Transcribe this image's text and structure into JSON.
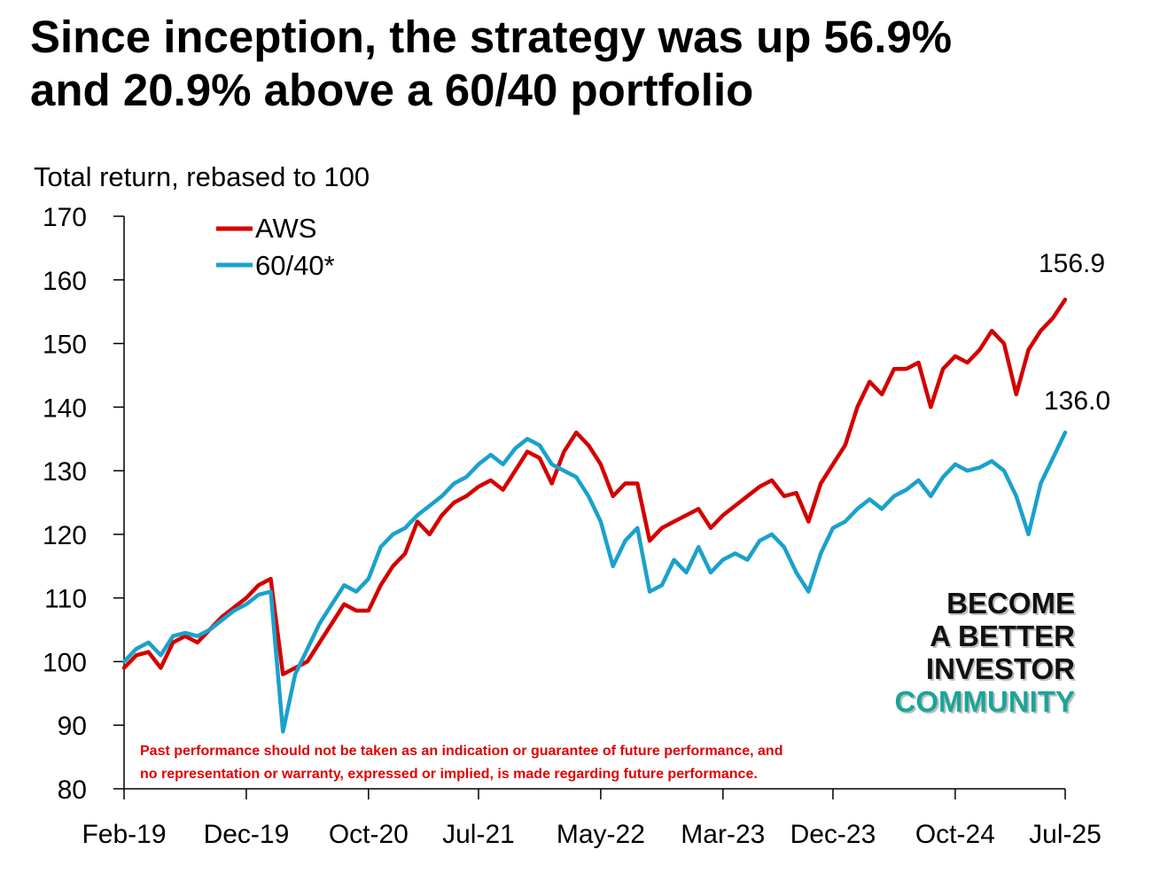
{
  "title_line1": "Since inception, the strategy was up 56.9%",
  "title_line2": "and 20.9% above a 60/40 portfolio",
  "brand": {
    "line1": "BECOME",
    "line2": "A BETTER",
    "line3": "INVESTOR",
    "line4": "COMMUNITY",
    "accent_color": "#1aa598"
  },
  "disclaimer": {
    "line1": "Past performance should not be taken as an indication or guarantee of future performance, and",
    "line2": "no representation or warranty, expressed or implied, is made regarding future performance."
  },
  "chart_data": {
    "type": "line",
    "ylabel": "Total return, rebased to 100",
    "ylim": [
      80,
      170
    ],
    "yticks": [
      80,
      90,
      100,
      110,
      120,
      130,
      140,
      150,
      160,
      170
    ],
    "xticks": [
      "Feb-19",
      "Dec-19",
      "Oct-20",
      "Jul-21",
      "May-22",
      "Mar-23",
      "Dec-23",
      "Oct-24",
      "Jul-25"
    ],
    "xtick_dates": [
      "2019-02",
      "2019-12",
      "2020-10",
      "2021-07",
      "2022-05",
      "2023-03",
      "2023-12",
      "2024-10",
      "2025-07"
    ],
    "grid": false,
    "legend_position": "top-left",
    "series": [
      {
        "name": "AWS",
        "color": "#d40000",
        "end_label": "156.9",
        "points": [
          [
            "2019-02",
            99
          ],
          [
            "2019-03",
            101
          ],
          [
            "2019-04",
            101.5
          ],
          [
            "2019-05",
            99
          ],
          [
            "2019-06",
            103
          ],
          [
            "2019-07",
            104
          ],
          [
            "2019-08",
            103
          ],
          [
            "2019-09",
            105
          ],
          [
            "2019-10",
            107
          ],
          [
            "2019-11",
            108.5
          ],
          [
            "2019-12",
            110
          ],
          [
            "2020-01",
            112
          ],
          [
            "2020-02",
            113
          ],
          [
            "2020-03",
            98
          ],
          [
            "2020-04",
            99
          ],
          [
            "2020-05",
            100
          ],
          [
            "2020-06",
            103
          ],
          [
            "2020-07",
            106
          ],
          [
            "2020-08",
            109
          ],
          [
            "2020-09",
            108
          ],
          [
            "2020-10",
            108
          ],
          [
            "2020-11",
            112
          ],
          [
            "2020-12",
            115
          ],
          [
            "2021-01",
            117
          ],
          [
            "2021-02",
            122
          ],
          [
            "2021-03",
            120
          ],
          [
            "2021-04",
            123
          ],
          [
            "2021-05",
            125
          ],
          [
            "2021-06",
            126
          ],
          [
            "2021-07",
            127.5
          ],
          [
            "2021-08",
            128.5
          ],
          [
            "2021-09",
            127
          ],
          [
            "2021-10",
            130
          ],
          [
            "2021-11",
            133
          ],
          [
            "2021-12",
            132
          ],
          [
            "2022-01",
            128
          ],
          [
            "2022-02",
            133
          ],
          [
            "2022-03",
            136
          ],
          [
            "2022-04",
            134
          ],
          [
            "2022-05",
            131
          ],
          [
            "2022-06",
            126
          ],
          [
            "2022-07",
            128
          ],
          [
            "2022-08",
            128
          ],
          [
            "2022-09",
            119
          ],
          [
            "2022-10",
            121
          ],
          [
            "2022-11",
            122
          ],
          [
            "2022-12",
            123
          ],
          [
            "2023-01",
            124
          ],
          [
            "2023-02",
            121
          ],
          [
            "2023-03",
            123
          ],
          [
            "2023-04",
            124.5
          ],
          [
            "2023-05",
            126
          ],
          [
            "2023-06",
            127.5
          ],
          [
            "2023-07",
            128.5
          ],
          [
            "2023-08",
            126
          ],
          [
            "2023-09",
            126.5
          ],
          [
            "2023-10",
            122
          ],
          [
            "2023-11",
            128
          ],
          [
            "2023-12",
            131
          ],
          [
            "2024-01",
            134
          ],
          [
            "2024-02",
            140
          ],
          [
            "2024-03",
            144
          ],
          [
            "2024-04",
            142
          ],
          [
            "2024-05",
            146
          ],
          [
            "2024-06",
            146
          ],
          [
            "2024-07",
            147
          ],
          [
            "2024-08",
            140
          ],
          [
            "2024-09",
            146
          ],
          [
            "2024-10",
            148
          ],
          [
            "2024-11",
            147
          ],
          [
            "2024-12",
            149
          ],
          [
            "2025-01",
            152
          ],
          [
            "2025-02",
            150
          ],
          [
            "2025-03",
            142
          ],
          [
            "2025-04",
            149
          ],
          [
            "2025-05",
            152
          ],
          [
            "2025-06",
            154
          ],
          [
            "2025-07",
            156.9
          ]
        ]
      },
      {
        "name": "60/40*",
        "color": "#1aa1cc",
        "end_label": "136.0",
        "points": [
          [
            "2019-02",
            100
          ],
          [
            "2019-03",
            102
          ],
          [
            "2019-04",
            103
          ],
          [
            "2019-05",
            101
          ],
          [
            "2019-06",
            104
          ],
          [
            "2019-07",
            104.5
          ],
          [
            "2019-08",
            104
          ],
          [
            "2019-09",
            105
          ],
          [
            "2019-10",
            106.5
          ],
          [
            "2019-11",
            108
          ],
          [
            "2019-12",
            109
          ],
          [
            "2020-01",
            110.5
          ],
          [
            "2020-02",
            111
          ],
          [
            "2020-03",
            89
          ],
          [
            "2020-04",
            98
          ],
          [
            "2020-05",
            102
          ],
          [
            "2020-06",
            106
          ],
          [
            "2020-07",
            109
          ],
          [
            "2020-08",
            112
          ],
          [
            "2020-09",
            111
          ],
          [
            "2020-10",
            113
          ],
          [
            "2020-11",
            118
          ],
          [
            "2020-12",
            120
          ],
          [
            "2021-01",
            121
          ],
          [
            "2021-02",
            123
          ],
          [
            "2021-03",
            124.5
          ],
          [
            "2021-04",
            126
          ],
          [
            "2021-05",
            128
          ],
          [
            "2021-06",
            129
          ],
          [
            "2021-07",
            131
          ],
          [
            "2021-08",
            132.5
          ],
          [
            "2021-09",
            131
          ],
          [
            "2021-10",
            133.5
          ],
          [
            "2021-11",
            135
          ],
          [
            "2021-12",
            134
          ],
          [
            "2022-01",
            131
          ],
          [
            "2022-02",
            130
          ],
          [
            "2022-03",
            129
          ],
          [
            "2022-04",
            126
          ],
          [
            "2022-05",
            122
          ],
          [
            "2022-06",
            115
          ],
          [
            "2022-07",
            119
          ],
          [
            "2022-08",
            121
          ],
          [
            "2022-09",
            111
          ],
          [
            "2022-10",
            112
          ],
          [
            "2022-11",
            116
          ],
          [
            "2022-12",
            114
          ],
          [
            "2023-01",
            118
          ],
          [
            "2023-02",
            114
          ],
          [
            "2023-03",
            116
          ],
          [
            "2023-04",
            117
          ],
          [
            "2023-05",
            116
          ],
          [
            "2023-06",
            119
          ],
          [
            "2023-07",
            120
          ],
          [
            "2023-08",
            118
          ],
          [
            "2023-09",
            114
          ],
          [
            "2023-10",
            111
          ],
          [
            "2023-11",
            117
          ],
          [
            "2023-12",
            121
          ],
          [
            "2024-01",
            122
          ],
          [
            "2024-02",
            124
          ],
          [
            "2024-03",
            125.5
          ],
          [
            "2024-04",
            124
          ],
          [
            "2024-05",
            126
          ],
          [
            "2024-06",
            127
          ],
          [
            "2024-07",
            128.5
          ],
          [
            "2024-08",
            126
          ],
          [
            "2024-09",
            129
          ],
          [
            "2024-10",
            131
          ],
          [
            "2024-11",
            130
          ],
          [
            "2024-12",
            130.5
          ],
          [
            "2025-01",
            131.5
          ],
          [
            "2025-02",
            130
          ],
          [
            "2025-03",
            126
          ],
          [
            "2025-04",
            120
          ],
          [
            "2025-05",
            128
          ],
          [
            "2025-06",
            132
          ],
          [
            "2025-07",
            136
          ]
        ]
      }
    ]
  }
}
